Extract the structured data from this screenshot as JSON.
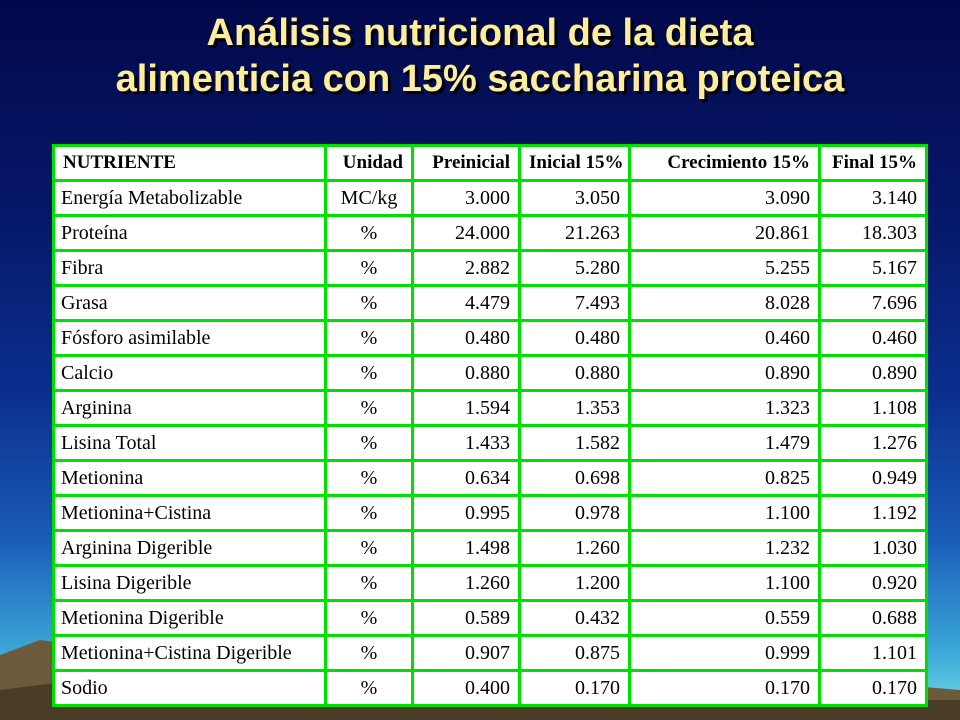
{
  "slide": {
    "title_line1": "Análisis  nutricional de la dieta",
    "title_line2": "alimenticia  con 15%  saccharina proteica",
    "colors": {
      "title": "#ffee99",
      "table_fill": "#ffffff",
      "table_border": "#00e000"
    }
  },
  "table": {
    "headers": [
      "NUTRIENTE",
      "Unidad",
      "Preinicial",
      "Inicial 15%",
      "Crecimiento 15%",
      "Final 15%"
    ],
    "rows": [
      [
        "Energía Metabolizable",
        "MC/kg",
        "3.000",
        "3.050",
        "3.090",
        "3.140"
      ],
      [
        "Proteína",
        "%",
        "24.000",
        "21.263",
        "20.861",
        "18.303"
      ],
      [
        "Fibra",
        "%",
        "2.882",
        "5.280",
        "5.255",
        "5.167"
      ],
      [
        "Grasa",
        "%",
        "4.479",
        "7.493",
        "8.028",
        "7.696"
      ],
      [
        "Fósforo asimilable",
        "%",
        "0.480",
        "0.480",
        "0.460",
        "0.460"
      ],
      [
        "Calcio",
        "%",
        "0.880",
        "0.880",
        "0.890",
        "0.890"
      ],
      [
        "Arginina",
        "%",
        "1.594",
        "1.353",
        "1.323",
        "1.108"
      ],
      [
        "Lisina Total",
        "%",
        "1.433",
        "1.582",
        "1.479",
        "1.276"
      ],
      [
        "Metionina",
        "%",
        "0.634",
        "0.698",
        "0.825",
        "0.949"
      ],
      [
        "Metionina+Cistina",
        "%",
        "0.995",
        "0.978",
        "1.100",
        "1.192"
      ],
      [
        "Arginina Digerible",
        "%",
        "1.498",
        "1.260",
        "1.232",
        "1.030"
      ],
      [
        "Lisina Digerible",
        "%",
        "1.260",
        "1.200",
        "1.100",
        "0.920"
      ],
      [
        "Metionina Digerible",
        "%",
        "0.589",
        "0.432",
        "0.559",
        "0.688"
      ],
      [
        "Metionina+Cistina Digerible",
        "%",
        "0.907",
        "0.875",
        "0.999",
        "1.101"
      ],
      [
        "Sodio",
        "%",
        "0.400",
        "0.170",
        "0.170",
        "0.170"
      ]
    ]
  }
}
